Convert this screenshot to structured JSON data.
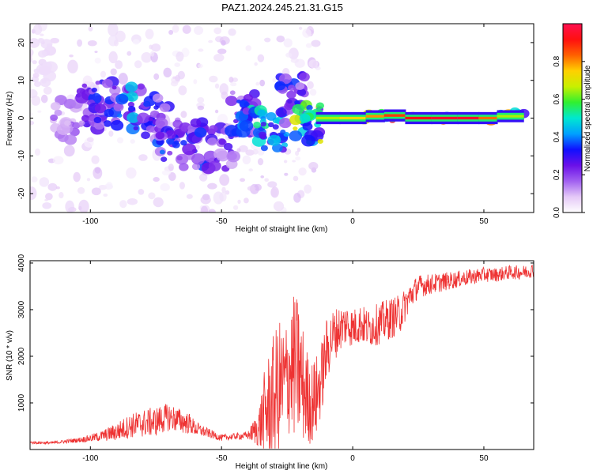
{
  "title": "PAZ1.2024.245.21.31.G15",
  "chart_data": [
    {
      "type": "heatmap",
      "xlabel": "Height of straight line (km)",
      "ylabel": "Frequency (Hz)",
      "xlim": [
        -123,
        69
      ],
      "ylim": [
        -25,
        25
      ],
      "x_ticks": [
        -100,
        -50,
        0,
        50
      ],
      "y_ticks": [
        -20,
        -10,
        0,
        10,
        20
      ],
      "x_tick_labels": [
        "-100",
        "-50",
        "0",
        "50"
      ],
      "y_tick_labels": [
        "-20",
        "-10",
        "0",
        "10",
        "20"
      ],
      "colorbar": {
        "label": "Normalized spectral amplitude",
        "range": [
          0,
          1
        ],
        "ticks": [
          0.0,
          0.2,
          0.4,
          0.6,
          0.8
        ],
        "tick_labels": [
          "0.0",
          "0.2",
          "0.4",
          "0.6",
          "0.8"
        ],
        "colormap": [
          "#ffffff",
          "#e4c8f7",
          "#a160f0",
          "#6a10e8",
          "#1010ff",
          "#00a0ff",
          "#00e8d0",
          "#30f030",
          "#c8f000",
          "#ffd000",
          "#ff6000",
          "#ff1010",
          "#ff1050"
        ]
      },
      "description_points": [
        {
          "x": -120,
          "y": 15,
          "v": 0.05
        },
        {
          "x": -110,
          "y": 0,
          "v": 0.15
        },
        {
          "x": -100,
          "y": 3,
          "v": 0.25
        },
        {
          "x": -95,
          "y": 4,
          "v": 0.3
        },
        {
          "x": -85,
          "y": 3,
          "v": 0.4
        },
        {
          "x": -75,
          "y": 0,
          "v": 0.3
        },
        {
          "x": -70,
          "y": -6,
          "v": 0.35
        },
        {
          "x": -60,
          "y": -7,
          "v": 0.3
        },
        {
          "x": -50,
          "y": -8,
          "v": 0.25
        },
        {
          "x": -42,
          "y": 1,
          "v": 0.3
        },
        {
          "x": -38,
          "y": -2,
          "v": 0.45
        },
        {
          "x": -30,
          "y": -3,
          "v": 0.4
        },
        {
          "x": -23,
          "y": 6,
          "v": 0.3
        },
        {
          "x": -17,
          "y": -2,
          "v": 0.6
        },
        {
          "x": -14,
          "y": 0,
          "v": 0.6
        },
        {
          "x": -5,
          "y": 0,
          "v": 0.7
        },
        {
          "x": 5,
          "y": 0.5,
          "v": 0.75
        },
        {
          "x": 12,
          "y": 0.7,
          "v": 0.85
        },
        {
          "x": 20,
          "y": 0,
          "v": 0.9
        },
        {
          "x": 30,
          "y": 0,
          "v": 0.95
        },
        {
          "x": 40,
          "y": 0,
          "v": 0.95
        },
        {
          "x": 48,
          "y": 0,
          "v": 0.95
        },
        {
          "x": 55,
          "y": 0.5,
          "v": 0.7
        },
        {
          "x": 65,
          "y": 0.8,
          "v": 0.6
        }
      ]
    },
    {
      "type": "line",
      "xlabel": "Height of straight line (km)",
      "ylabel": "SNR (10 * v/v)",
      "xlim": [
        -123,
        69
      ],
      "ylim": [
        0,
        4050
      ],
      "x_ticks": [
        -100,
        -50,
        0,
        50
      ],
      "y_ticks": [
        1000,
        2000,
        3000,
        4000
      ],
      "x_tick_labels": [
        "-100",
        "-50",
        "0",
        "50"
      ],
      "y_tick_labels": [
        "1000",
        "2000",
        "3000",
        "4000"
      ],
      "color": "#ee3333",
      "series": [
        {
          "x": [
            -123,
            -115,
            -110,
            -105,
            -100,
            -95,
            -90,
            -85,
            -80,
            -75,
            -70,
            -65,
            -62,
            -60,
            -55,
            -50,
            -45,
            -40,
            -36,
            -34,
            -32,
            -30,
            -28,
            -26,
            -24,
            -22,
            -20,
            -18,
            -16,
            -14,
            -12,
            -10,
            -8,
            -5,
            -2,
            0,
            3,
            6,
            10,
            14,
            18,
            20,
            22,
            25,
            30,
            35,
            40,
            45,
            50,
            55,
            60,
            65,
            69
          ],
          "y": [
            150,
            140,
            170,
            200,
            240,
            300,
            380,
            500,
            560,
            600,
            700,
            600,
            550,
            450,
            350,
            250,
            280,
            300,
            450,
            700,
            900,
            1100,
            1300,
            1400,
            1700,
            1800,
            1600,
            1200,
            1000,
            1100,
            1500,
            2100,
            2400,
            2600,
            2700,
            2600,
            2700,
            2600,
            2700,
            2800,
            2900,
            3100,
            3300,
            3500,
            3550,
            3600,
            3650,
            3700,
            3750,
            3750,
            3800,
            3800,
            3850
          ],
          "noise": [
            30,
            30,
            40,
            50,
            80,
            120,
            200,
            260,
            300,
            320,
            300,
            260,
            220,
            160,
            100,
            70,
            70,
            80,
            400,
            900,
            1200,
            1400,
            1500,
            1300,
            1400,
            1600,
            1500,
            1100,
            900,
            900,
            800,
            700,
            600,
            500,
            450,
            420,
            420,
            420,
            450,
            450,
            420,
            360,
            300,
            250,
            220,
            200,
            180,
            170,
            160,
            150,
            150,
            150,
            150
          ]
        }
      ]
    }
  ]
}
